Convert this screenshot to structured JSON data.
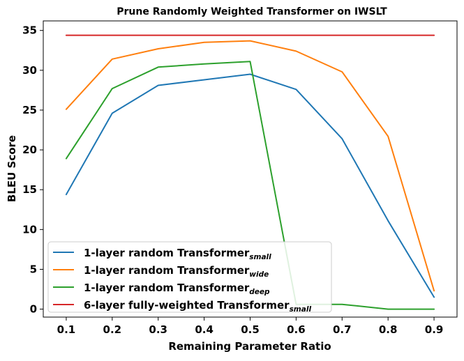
{
  "chart_data": {
    "type": "line",
    "title": "Prune Randomly Weighted Transformer on IWSLT",
    "xlabel": "Remaining Parameter Ratio",
    "ylabel": "BLEU Score",
    "x": [
      0.1,
      0.2,
      0.3,
      0.4,
      0.5,
      0.6,
      0.7,
      0.8,
      0.9
    ],
    "x_ticks": [
      "0.1",
      "0.2",
      "0.3",
      "0.4",
      "0.5",
      "0.6",
      "0.7",
      "0.8",
      "0.9"
    ],
    "y_ticks": [
      "0",
      "5",
      "10",
      "15",
      "20",
      "25",
      "30",
      "35"
    ],
    "xlim": [
      0.05,
      0.95
    ],
    "ylim": [
      -1.0,
      36.2
    ],
    "grid": false,
    "legend_position": "lower-left",
    "series": [
      {
        "name": "1-layer random Transformer",
        "name_sub": "small",
        "color": "#1f77b4",
        "values": [
          14.4,
          24.6,
          28.1,
          28.8,
          29.5,
          27.6,
          21.4,
          11.1,
          1.5
        ]
      },
      {
        "name": "1-layer random Transformer",
        "name_sub": "wide",
        "color": "#ff7f0e",
        "values": [
          25.1,
          31.4,
          32.7,
          33.5,
          33.7,
          32.4,
          29.8,
          21.7,
          2.3
        ]
      },
      {
        "name": "1-layer random Transformer",
        "name_sub": "deep",
        "color": "#2ca02c",
        "values": [
          18.9,
          27.7,
          30.4,
          30.8,
          31.1,
          0.6,
          0.6,
          0.0,
          0.0
        ]
      },
      {
        "name": "6-layer fully-weighted Transformer",
        "name_sub": "small",
        "color": "#d62728",
        "values": [
          34.4,
          34.4,
          34.4,
          34.4,
          34.4,
          34.4,
          34.4,
          34.4,
          34.4
        ]
      }
    ]
  }
}
